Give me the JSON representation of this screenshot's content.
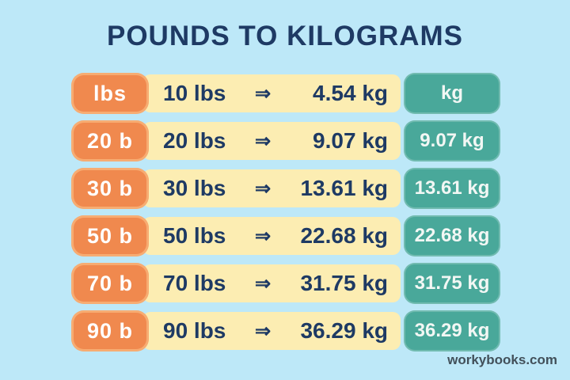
{
  "title": "POUNDS TO KILOGRAMS",
  "table": {
    "arrow_glyph": "⇒",
    "left_header": "lbs",
    "right_header": "kg",
    "rows": [
      {
        "label": "lbs",
        "lbs": "10 lbs",
        "kg": "4.54 kg",
        "badge": "kg"
      },
      {
        "label": "20 b",
        "lbs": "20 lbs",
        "kg": "9.07 kg",
        "badge": "9.07 kg"
      },
      {
        "label": "30 b",
        "lbs": "30 lbs",
        "kg": "13.61 kg",
        "badge": "13.61 kg"
      },
      {
        "label": "50 b",
        "lbs": "50 lbs",
        "kg": "22.68 kg",
        "badge": "22.68 kg"
      },
      {
        "label": "70 b",
        "lbs": "70 lbs",
        "kg": "31.75 kg",
        "badge": "31.75 kg"
      },
      {
        "label": "90 b",
        "lbs": "90 lbs",
        "kg": "36.29 kg",
        "badge": "36.29 kg"
      }
    ]
  },
  "footer": {
    "watermark": "workybooks.com"
  },
  "colors": {
    "background": "#BDE8F8",
    "orange": "#F0894E",
    "yellow": "#FCEDB2",
    "teal": "#49A89A",
    "navy": "#1E3A64",
    "footer_text": "#42505A"
  },
  "chart_data": {
    "type": "table",
    "title": "POUNDS TO KILOGRAMS",
    "columns": [
      "lbs",
      "kg"
    ],
    "rows": [
      [
        10,
        4.54
      ],
      [
        20,
        9.07
      ],
      [
        30,
        13.61
      ],
      [
        50,
        22.68
      ],
      [
        70,
        31.75
      ],
      [
        90,
        36.29
      ]
    ]
  }
}
